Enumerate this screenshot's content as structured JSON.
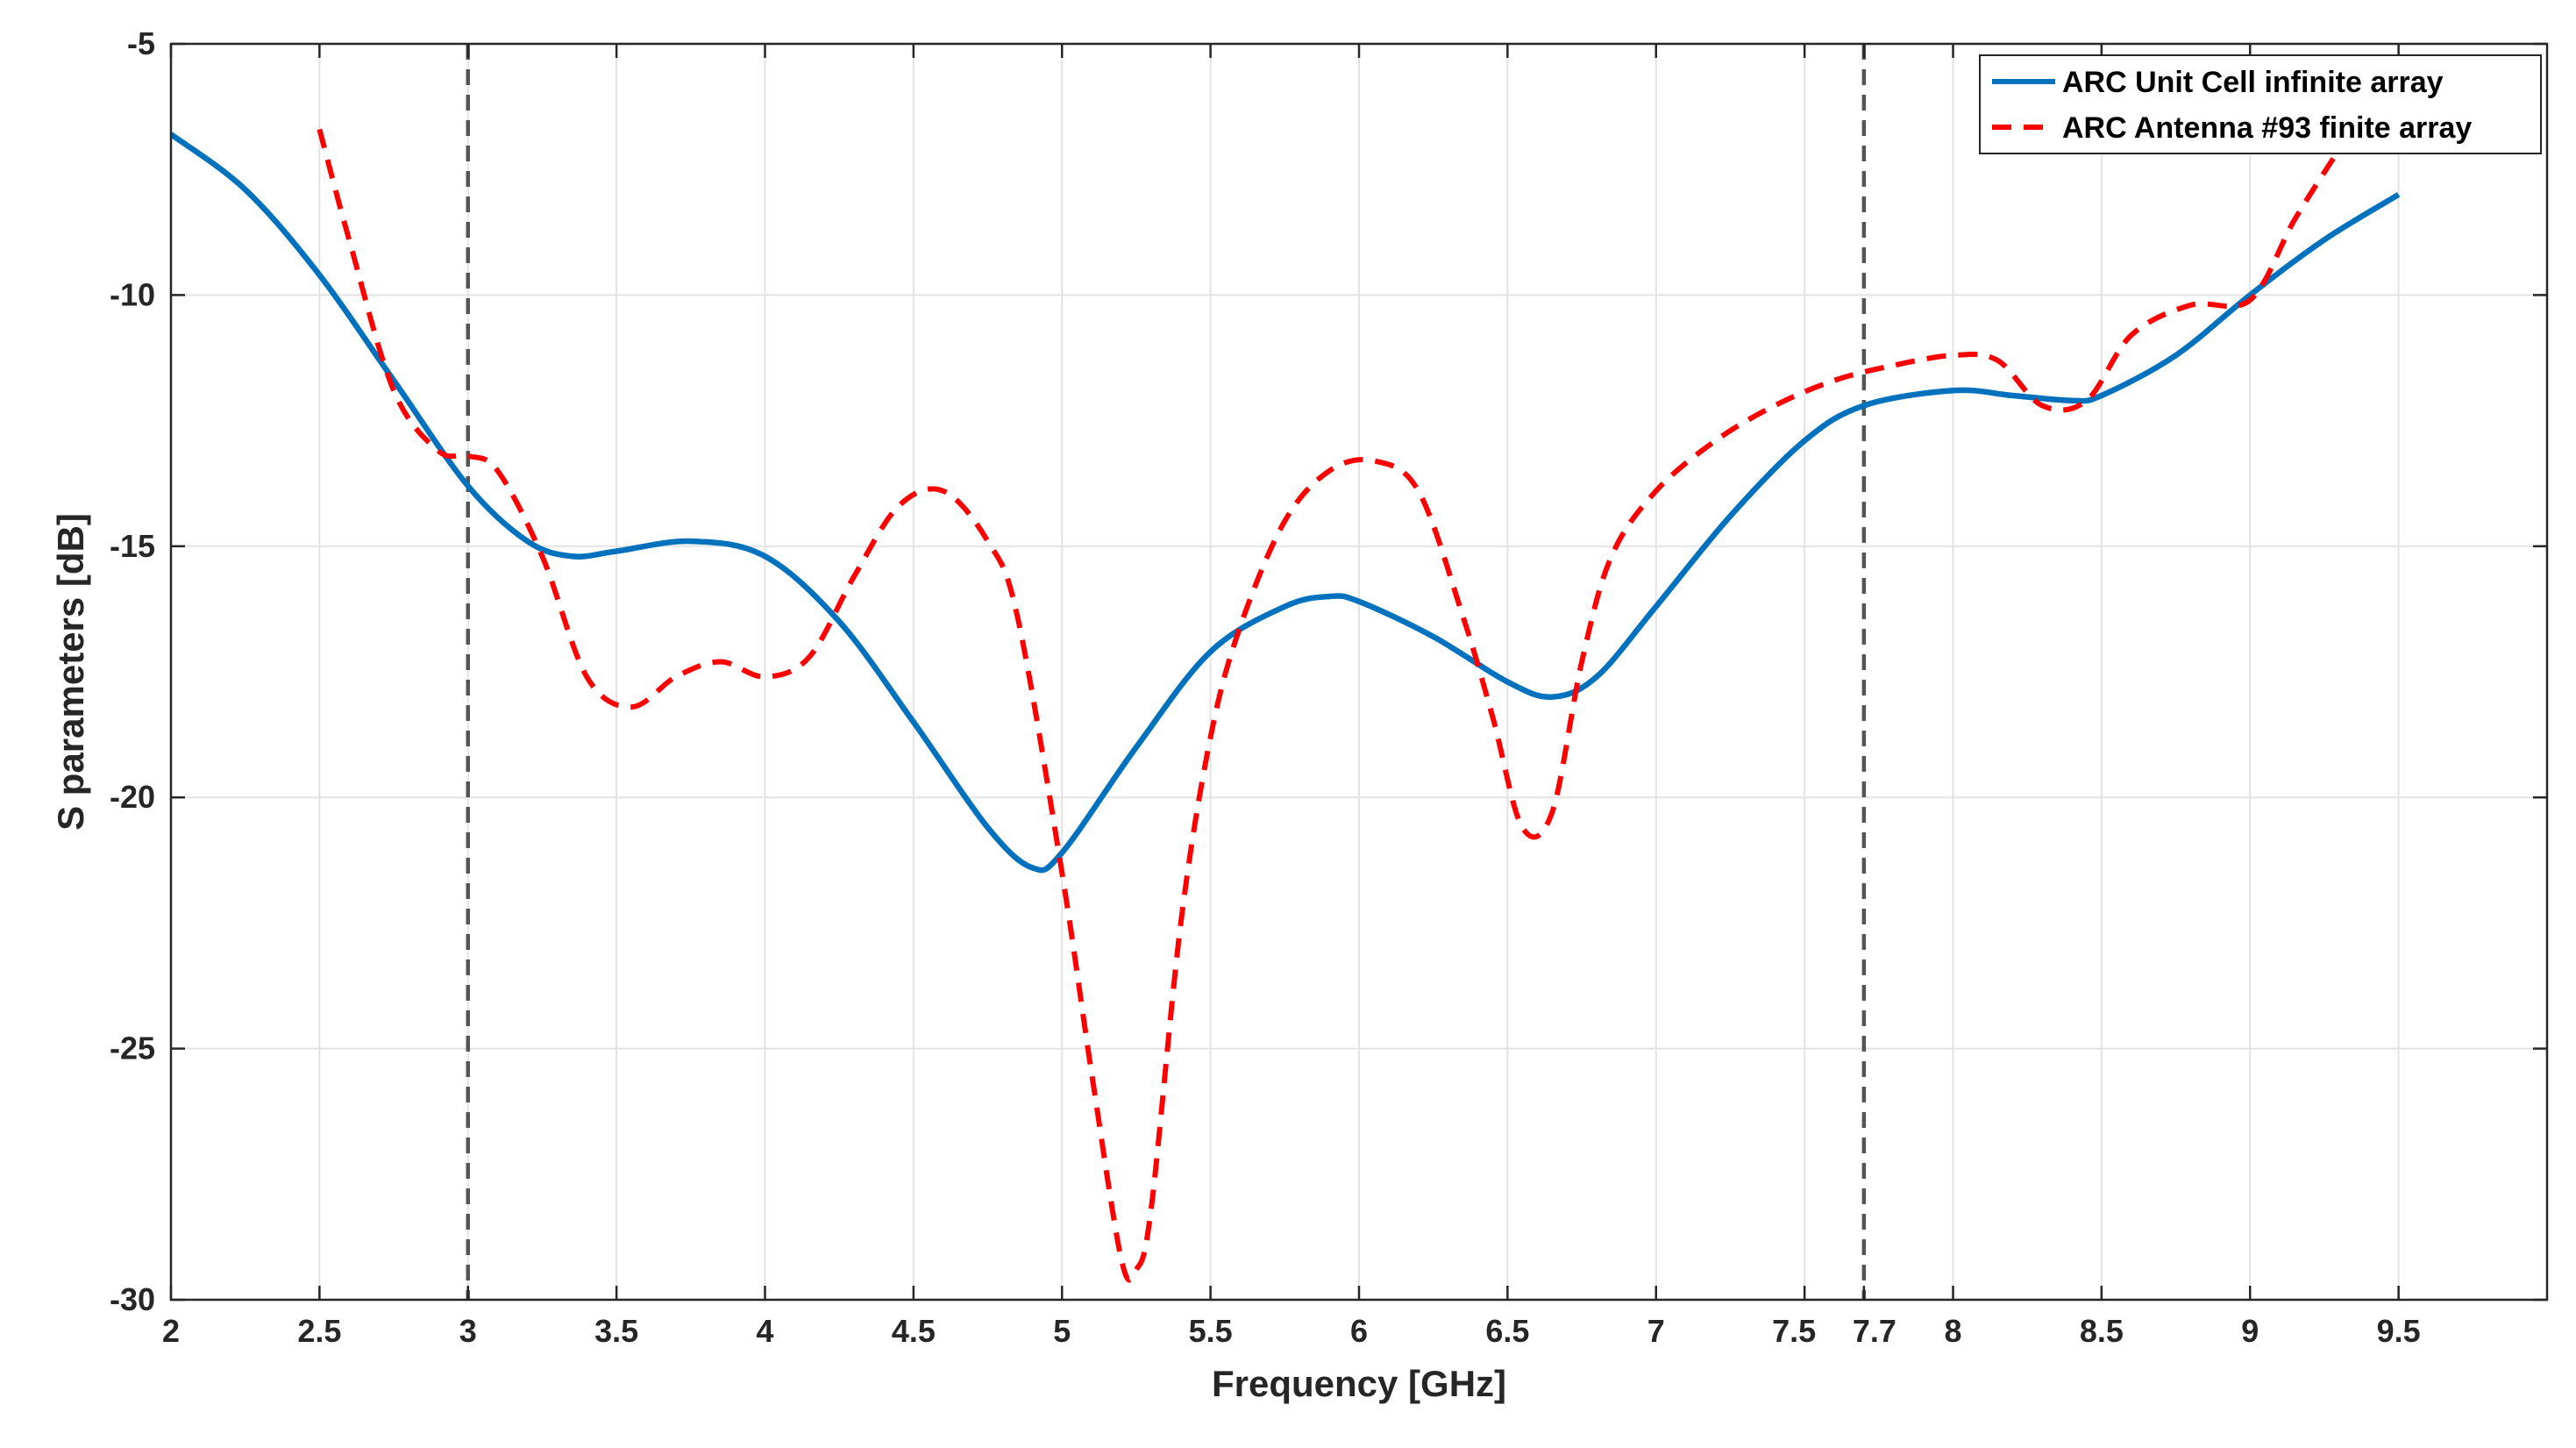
{
  "chart_data": {
    "type": "line",
    "title": "",
    "xlabel": "Frequency [GHz]",
    "ylabel": "S parameters [dB]",
    "xlim": [
      2,
      10
    ],
    "ylim": [
      -30,
      -5
    ],
    "grid": true,
    "legend_position": "top-right",
    "x_ticks": [
      2,
      2.5,
      3,
      3.5,
      4,
      4.5,
      5,
      5.5,
      6,
      6.5,
      7,
      7.5,
      7.7,
      8,
      8.5,
      9,
      9.5
    ],
    "x_tick_labels": [
      "2",
      "2.5",
      "3",
      "3.5",
      "4",
      "4.5",
      "5",
      "5.5",
      "6",
      "6.5",
      "7",
      "7.5",
      "7.7",
      "8",
      "8.5",
      "9",
      "9.5"
    ],
    "y_ticks": [
      -30,
      -25,
      -20,
      -15,
      -10,
      -5
    ],
    "y_tick_labels": [
      "-30",
      "-25",
      "-20",
      "-15",
      "-10",
      "-5"
    ],
    "vertical_markers": [
      3,
      7.7
    ],
    "series": [
      {
        "name": "ARC Unit Cell infinite array",
        "color": "#0072BD",
        "style": "solid",
        "x": [
          2.0,
          2.25,
          2.5,
          2.75,
          3.0,
          3.2,
          3.35,
          3.5,
          3.75,
          4.0,
          4.25,
          4.5,
          4.75,
          4.9,
          5.0,
          5.25,
          5.5,
          5.75,
          5.9,
          6.0,
          6.25,
          6.5,
          6.65,
          6.8,
          7.0,
          7.25,
          7.5,
          7.7,
          8.0,
          8.2,
          8.4,
          8.5,
          8.75,
          9.0,
          9.25,
          9.5
        ],
        "y": [
          -6.8,
          -7.9,
          -9.6,
          -11.7,
          -13.8,
          -14.9,
          -15.2,
          -15.1,
          -14.9,
          -15.2,
          -16.5,
          -18.5,
          -20.6,
          -21.4,
          -21.1,
          -19.0,
          -17.1,
          -16.2,
          -16.0,
          -16.1,
          -16.8,
          -17.7,
          -18.0,
          -17.6,
          -16.2,
          -14.4,
          -12.9,
          -12.2,
          -11.9,
          -12.0,
          -12.1,
          -12.0,
          -11.2,
          -10.0,
          -8.9,
          -8.0
        ]
      },
      {
        "name": "ARC Antenna #93 finite array",
        "color": "#FF0000",
        "style": "dashed",
        "x": [
          2.5,
          2.6,
          2.75,
          2.9,
          3.0,
          3.1,
          3.25,
          3.4,
          3.55,
          3.7,
          3.85,
          4.0,
          4.15,
          4.3,
          4.45,
          4.6,
          4.75,
          4.85,
          5.0,
          5.1,
          5.2,
          5.25,
          5.3,
          5.4,
          5.5,
          5.6,
          5.75,
          5.9,
          6.05,
          6.2,
          6.35,
          6.45,
          6.55,
          6.65,
          6.75,
          6.85,
          7.0,
          7.2,
          7.4,
          7.6,
          7.8,
          8.0,
          8.15,
          8.3,
          8.45,
          8.6,
          8.8,
          9.0,
          9.15,
          9.3
        ],
        "y": [
          -6.7,
          -8.9,
          -11.9,
          -13.1,
          -13.2,
          -13.5,
          -15.2,
          -17.6,
          -18.2,
          -17.6,
          -17.3,
          -17.6,
          -17.2,
          -15.6,
          -14.2,
          -13.9,
          -14.9,
          -16.4,
          -21.5,
          -25.5,
          -29.2,
          -29.4,
          -28.2,
          -22.5,
          -18.8,
          -16.6,
          -14.5,
          -13.5,
          -13.3,
          -13.9,
          -16.4,
          -18.4,
          -20.6,
          -20.3,
          -17.3,
          -15.2,
          -13.9,
          -12.9,
          -12.2,
          -11.7,
          -11.4,
          -11.2,
          -11.3,
          -12.2,
          -12.1,
          -10.8,
          -10.2,
          -10.1,
          -8.5,
          -7.1
        ]
      }
    ]
  }
}
